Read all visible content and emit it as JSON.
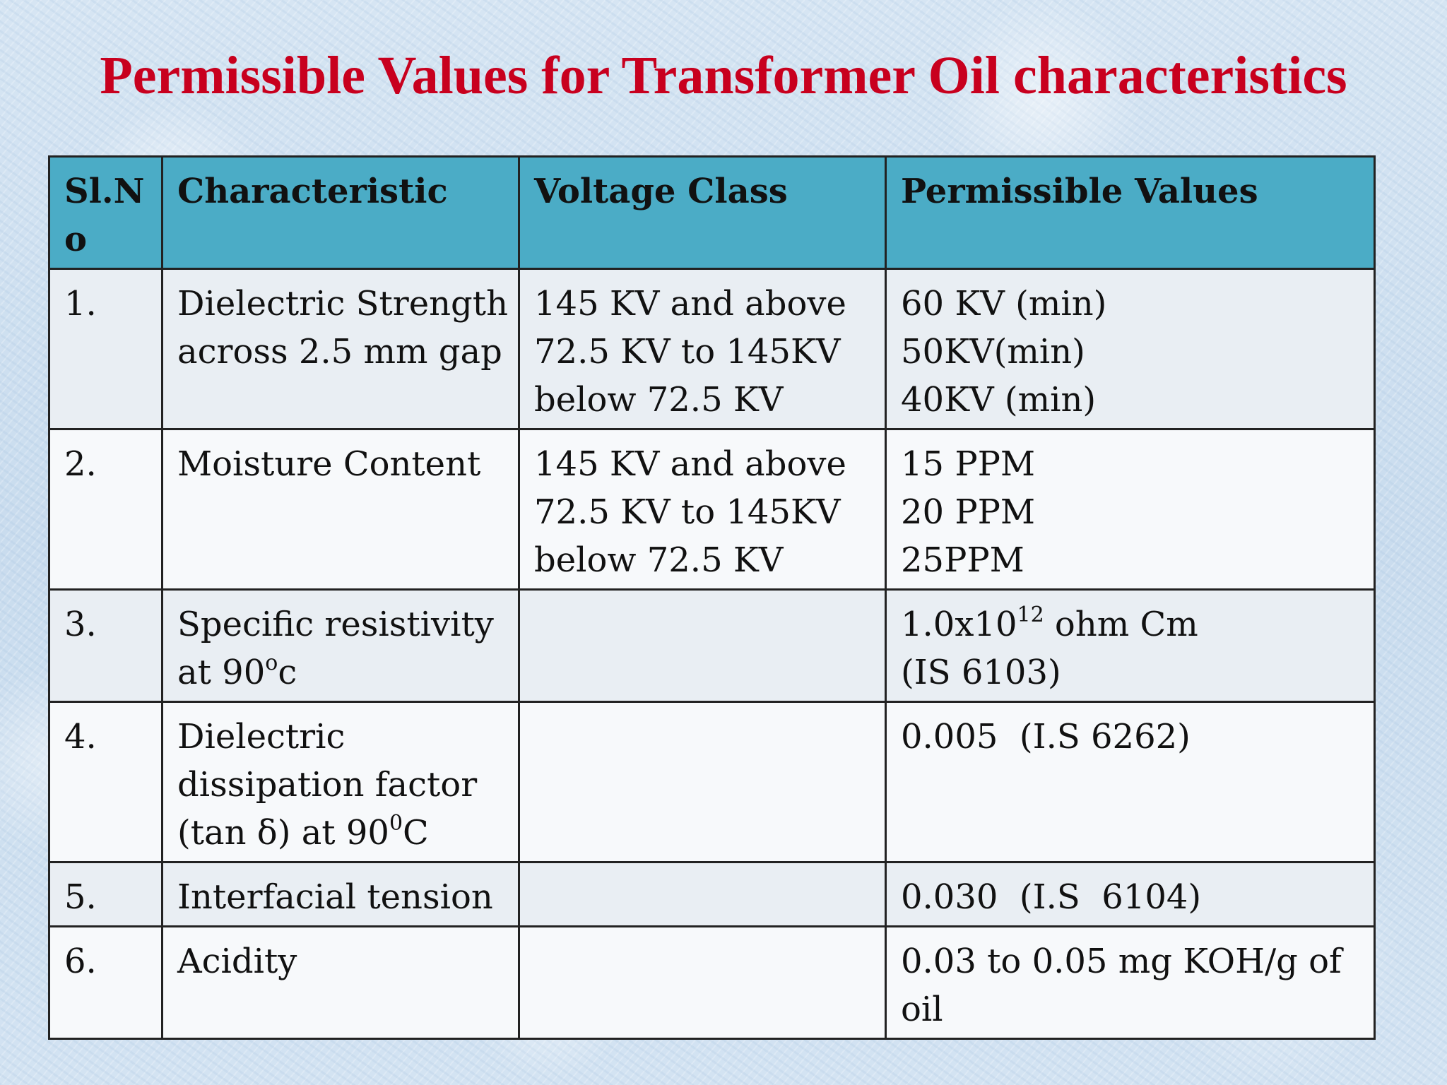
{
  "title": "Permissible Values for Transformer Oil characteristics",
  "table": {
    "headers": {
      "slno": "Sl.No",
      "characteristic": "Characteristic",
      "voltage_class": "Voltage Class",
      "permissible_values": "Permissible Values"
    },
    "rows": [
      {
        "slno": "1.",
        "characteristic": [
          "Dielectric Strength",
          "across 2.5 mm gap"
        ],
        "voltage_class": [
          "145 KV and above",
          "72.5 KV to 145KV",
          "below 72.5 KV"
        ],
        "permissible_values": [
          "60 KV (min)",
          "50KV(min)",
          "40KV (min)"
        ]
      },
      {
        "slno": "2.",
        "characteristic": [
          "Moisture Content"
        ],
        "voltage_class": [
          "145 KV and above",
          "72.5 KV to 145KV",
          "below 72.5 KV"
        ],
        "permissible_values": [
          "15 PPM",
          "20 PPM",
          "25PPM"
        ]
      },
      {
        "slno": "3.",
        "characteristic": {
          "line1": "Specific resistivity",
          "line2_prefix": "at 90",
          "line2_sup": "o",
          "line2_suffix": "c"
        },
        "voltage_class": [],
        "permissible_values": {
          "line1_prefix": "1.0x10",
          "line1_sup": "12",
          "line1_suffix": " ohm Cm",
          "line2": "(IS 6103)"
        }
      },
      {
        "slno": "4.",
        "characteristic": {
          "line1": "Dielectric",
          "line2": "dissipation factor",
          "line3_prefix": "(tan δ) at 90",
          "line3_sup": "0",
          "line3_suffix": "C"
        },
        "voltage_class": [],
        "permissible_values": [
          "0.005  (I.S 6262)"
        ]
      },
      {
        "slno": "5.",
        "characteristic": [
          "Interfacial tension"
        ],
        "voltage_class": [],
        "permissible_values": [
          "0.030  (I.S  6104)"
        ]
      },
      {
        "slno": "6.",
        "characteristic": [
          "Acidity"
        ],
        "voltage_class": [],
        "permissible_values": [
          "0.03 to 0.05 mg KOH/g of",
          "oil"
        ]
      }
    ]
  },
  "colors": {
    "title": "#c8001e",
    "header_fill": "#4bacc6",
    "row_fill_odd": "#e9eef3",
    "row_fill_even": "#f7f9fb",
    "border": "#222222"
  }
}
